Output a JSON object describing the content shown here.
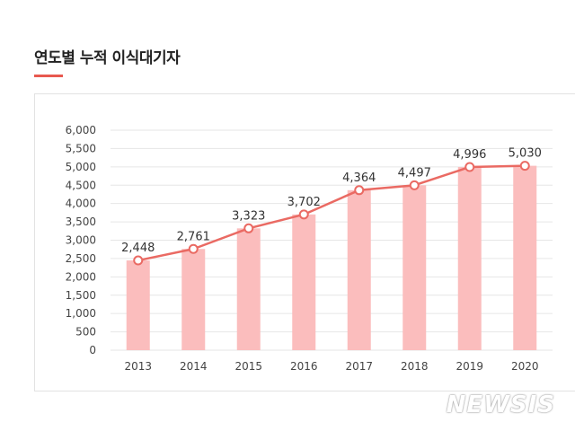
{
  "page": {
    "title": "연도별 누적 이식대기자",
    "watermark": "NEWSIS"
  },
  "colors": {
    "accent": "#e8584f",
    "bar": "#fbbdbd",
    "line": "#ea6a63",
    "grid": "#e6e6e6",
    "axis_text": "#444444"
  },
  "chart_data": {
    "type": "bar+line",
    "title": "연도별 누적 이식대기자",
    "categories": [
      "2013",
      "2014",
      "2015",
      "2016",
      "2017",
      "2018",
      "2019",
      "2020"
    ],
    "values": [
      2448,
      2761,
      3323,
      3702,
      4364,
      4497,
      4996,
      5030
    ],
    "labels": [
      "2,448",
      "2,761",
      "3,323",
      "3,702",
      "4,364",
      "4,497",
      "4,996",
      "5,030"
    ],
    "ylim": [
      0,
      6000
    ],
    "yticks": [
      0,
      500,
      1000,
      1500,
      2000,
      2500,
      3000,
      3500,
      4000,
      4500,
      5000,
      5500,
      6000
    ],
    "ytick_labels": [
      "0",
      "500",
      "1,000",
      "1,500",
      "2,000",
      "2,500",
      "3,000",
      "3,500",
      "4,000",
      "4,500",
      "5,000",
      "5,500",
      "6,000"
    ],
    "xlabel": "",
    "ylabel": "",
    "grid": true,
    "legend": "none"
  }
}
